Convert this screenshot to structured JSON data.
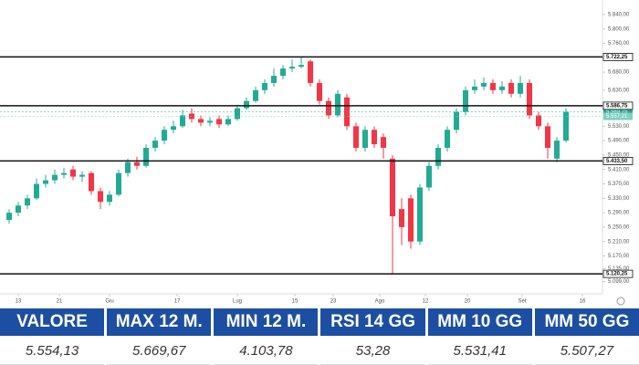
{
  "chart_data": {
    "type": "candlestick",
    "up_color": "#22ab94",
    "down_color": "#f23645",
    "xlim": [
      -1,
      64
    ],
    "ylim": [
      5075,
      5860
    ],
    "xticks": [
      {
        "value": 1,
        "label": "13"
      },
      {
        "value": 5.5,
        "label": "21"
      },
      {
        "value": 11,
        "label": "Giu"
      },
      {
        "value": 18.4,
        "label": "17"
      },
      {
        "value": 25,
        "label": "Lug"
      },
      {
        "value": 31.3,
        "label": "15"
      },
      {
        "value": 35.5,
        "label": "23"
      },
      {
        "value": 40.6,
        "label": "Ago"
      },
      {
        "value": 45.6,
        "label": "12"
      },
      {
        "value": 50.2,
        "label": "20"
      },
      {
        "value": 56.2,
        "label": "Set"
      },
      {
        "value": 62.8,
        "label": "16"
      }
    ],
    "yticks": [
      {
        "value": 5840,
        "label": "5.840,00"
      },
      {
        "value": 5800,
        "label": "5.800,00"
      },
      {
        "value": 5760,
        "label": "5.760,00"
      },
      {
        "value": 5680,
        "label": "5.680,00"
      },
      {
        "value": 5630,
        "label": "5.630,00"
      },
      {
        "value": 5530,
        "label": "5.530,00"
      },
      {
        "value": 5490,
        "label": "5.490,00"
      },
      {
        "value": 5450,
        "label": "5.450,00"
      },
      {
        "value": 5410,
        "label": "5.410,00"
      },
      {
        "value": 5370,
        "label": "5.370,00"
      },
      {
        "value": 5330,
        "label": "5.330,00"
      },
      {
        "value": 5290,
        "label": "5.290,00"
      },
      {
        "value": 5250,
        "label": "5.250,00"
      },
      {
        "value": 5210,
        "label": "5.210,00"
      },
      {
        "value": 5170,
        "label": "5.170,00"
      },
      {
        "value": 5135,
        "label": "5.135,00"
      },
      {
        "value": 5099,
        "label": "5.099,00"
      }
    ],
    "levels": [
      {
        "value": 5722.25,
        "label": "5.722,25"
      },
      {
        "value": 5586.75,
        "label": "5.586,75"
      },
      {
        "value": 5433.5,
        "label": "5.433,50"
      },
      {
        "value": 5120.25,
        "label": "5.120,25"
      }
    ],
    "price_badges": [
      {
        "value": 5569.75,
        "label": "5.569,75",
        "color": "#22ab94"
      },
      {
        "value": 5557.21,
        "label": "5.557,21",
        "color": "#7fd0c2"
      }
    ],
    "candles": [
      {
        "open": 5270,
        "high": 5300,
        "low": 5260,
        "close": 5290
      },
      {
        "open": 5290,
        "high": 5320,
        "low": 5280,
        "close": 5310
      },
      {
        "open": 5310,
        "high": 5340,
        "low": 5300,
        "close": 5330
      },
      {
        "open": 5330,
        "high": 5385,
        "low": 5325,
        "close": 5370
      },
      {
        "open": 5370,
        "high": 5395,
        "low": 5360,
        "close": 5380
      },
      {
        "open": 5380,
        "high": 5410,
        "low": 5370,
        "close": 5395
      },
      {
        "open": 5395,
        "high": 5415,
        "low": 5385,
        "close": 5400
      },
      {
        "open": 5410,
        "high": 5420,
        "low": 5380,
        "close": 5390
      },
      {
        "open": 5390,
        "high": 5405,
        "low": 5375,
        "close": 5395
      },
      {
        "open": 5400,
        "high": 5405,
        "low": 5340,
        "close": 5350
      },
      {
        "open": 5350,
        "high": 5360,
        "low": 5300,
        "close": 5320
      },
      {
        "open": 5320,
        "high": 5350,
        "low": 5310,
        "close": 5340
      },
      {
        "open": 5340,
        "high": 5410,
        "low": 5335,
        "close": 5400
      },
      {
        "open": 5400,
        "high": 5440,
        "low": 5390,
        "close": 5430
      },
      {
        "open": 5430,
        "high": 5445,
        "low": 5410,
        "close": 5420
      },
      {
        "open": 5420,
        "high": 5480,
        "low": 5415,
        "close": 5470
      },
      {
        "open": 5470,
        "high": 5500,
        "low": 5460,
        "close": 5490
      },
      {
        "open": 5490,
        "high": 5530,
        "low": 5480,
        "close": 5520
      },
      {
        "open": 5520,
        "high": 5545,
        "low": 5510,
        "close": 5530
      },
      {
        "open": 5530,
        "high": 5575,
        "low": 5525,
        "close": 5560
      },
      {
        "open": 5565,
        "high": 5580,
        "low": 5540,
        "close": 5550
      },
      {
        "open": 5550,
        "high": 5560,
        "low": 5530,
        "close": 5540
      },
      {
        "open": 5540,
        "high": 5555,
        "low": 5530,
        "close": 5545
      },
      {
        "open": 5550,
        "high": 5560,
        "low": 5525,
        "close": 5535
      },
      {
        "open": 5535,
        "high": 5560,
        "low": 5530,
        "close": 5550
      },
      {
        "open": 5550,
        "high": 5590,
        "low": 5545,
        "close": 5580
      },
      {
        "open": 5580,
        "high": 5610,
        "low": 5575,
        "close": 5600
      },
      {
        "open": 5600,
        "high": 5640,
        "low": 5595,
        "close": 5630
      },
      {
        "open": 5630,
        "high": 5660,
        "low": 5620,
        "close": 5650
      },
      {
        "open": 5650,
        "high": 5690,
        "low": 5640,
        "close": 5670
      },
      {
        "open": 5670,
        "high": 5700,
        "low": 5660,
        "close": 5690
      },
      {
        "open": 5690,
        "high": 5715,
        "low": 5680,
        "close": 5695
      },
      {
        "open": 5695,
        "high": 5722,
        "low": 5690,
        "close": 5700
      },
      {
        "open": 5710,
        "high": 5715,
        "low": 5640,
        "close": 5650
      },
      {
        "open": 5650,
        "high": 5660,
        "low": 5590,
        "close": 5600
      },
      {
        "open": 5600,
        "high": 5610,
        "low": 5550,
        "close": 5560
      },
      {
        "open": 5560,
        "high": 5630,
        "low": 5555,
        "close": 5620
      },
      {
        "open": 5610,
        "high": 5620,
        "low": 5520,
        "close": 5530
      },
      {
        "open": 5530,
        "high": 5540,
        "low": 5460,
        "close": 5470
      },
      {
        "open": 5470,
        "high": 5530,
        "low": 5460,
        "close": 5520
      },
      {
        "open": 5520,
        "high": 5530,
        "low": 5470,
        "close": 5480
      },
      {
        "open": 5500,
        "high": 5510,
        "low": 5440,
        "close": 5470
      },
      {
        "open": 5440,
        "high": 5450,
        "low": 5120,
        "close": 5280
      },
      {
        "open": 5300,
        "high": 5330,
        "low": 5200,
        "close": 5250
      },
      {
        "open": 5330,
        "high": 5340,
        "low": 5190,
        "close": 5210
      },
      {
        "open": 5210,
        "high": 5370,
        "low": 5200,
        "close": 5360
      },
      {
        "open": 5360,
        "high": 5430,
        "low": 5350,
        "close": 5420
      },
      {
        "open": 5420,
        "high": 5480,
        "low": 5410,
        "close": 5470
      },
      {
        "open": 5470,
        "high": 5530,
        "low": 5460,
        "close": 5520
      },
      {
        "open": 5520,
        "high": 5580,
        "low": 5510,
        "close": 5570
      },
      {
        "open": 5570,
        "high": 5640,
        "low": 5560,
        "close": 5630
      },
      {
        "open": 5630,
        "high": 5660,
        "low": 5620,
        "close": 5640
      },
      {
        "open": 5640,
        "high": 5665,
        "low": 5630,
        "close": 5650
      },
      {
        "open": 5650,
        "high": 5660,
        "low": 5620,
        "close": 5630
      },
      {
        "open": 5630,
        "high": 5655,
        "low": 5620,
        "close": 5640
      },
      {
        "open": 5650,
        "high": 5660,
        "low": 5610,
        "close": 5620
      },
      {
        "open": 5620,
        "high": 5669,
        "low": 5610,
        "close": 5650
      },
      {
        "open": 5650,
        "high": 5660,
        "low": 5550,
        "close": 5560
      },
      {
        "open": 5560,
        "high": 5570,
        "low": 5520,
        "close": 5530
      },
      {
        "open": 5530,
        "high": 5540,
        "low": 5440,
        "close": 5470
      },
      {
        "open": 5440,
        "high": 5500,
        "low": 5430,
        "close": 5490
      },
      {
        "open": 5490,
        "high": 5580,
        "low": 5485,
        "close": 5570
      }
    ]
  },
  "table": {
    "header": [
      "VALORE",
      "MAX 12 M.",
      "MIN 12 M.",
      "RSI 14 GG",
      "MM 10 GG",
      "MM 50 GG"
    ],
    "values": [
      "5.554,13",
      "5.669,67",
      "4.103,78",
      "53,28",
      "5.531,41",
      "5.507,27"
    ]
  }
}
